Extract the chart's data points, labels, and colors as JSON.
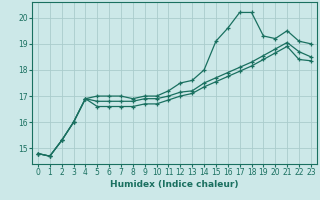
{
  "xlabel": "Humidex (Indice chaleur)",
  "ylabel": "",
  "xlim": [
    -0.5,
    23.5
  ],
  "ylim": [
    14.4,
    20.6
  ],
  "yticks": [
    15,
    16,
    17,
    18,
    19,
    20
  ],
  "xticks": [
    0,
    1,
    2,
    3,
    4,
    5,
    6,
    7,
    8,
    9,
    10,
    11,
    12,
    13,
    14,
    15,
    16,
    17,
    18,
    19,
    20,
    21,
    22,
    23
  ],
  "bg_color": "#cce8e8",
  "grid_color": "#aacccc",
  "line_color": "#1a7060",
  "series": {
    "line1": [
      14.8,
      14.7,
      15.3,
      16.0,
      16.9,
      17.0,
      17.0,
      17.0,
      16.9,
      17.0,
      17.0,
      17.2,
      17.5,
      17.6,
      18.0,
      19.1,
      19.6,
      20.2,
      20.2,
      19.3,
      19.2,
      19.5,
      19.1,
      19.0
    ],
    "line2": [
      14.8,
      14.7,
      15.3,
      16.0,
      16.9,
      16.8,
      16.8,
      16.8,
      16.8,
      16.9,
      16.9,
      17.0,
      17.15,
      17.2,
      17.5,
      17.7,
      17.9,
      18.1,
      18.3,
      18.55,
      18.8,
      19.05,
      18.7,
      18.5
    ],
    "line3": [
      14.8,
      14.7,
      15.3,
      16.0,
      16.9,
      16.6,
      16.6,
      16.6,
      16.6,
      16.7,
      16.7,
      16.85,
      17.0,
      17.1,
      17.35,
      17.55,
      17.75,
      17.95,
      18.15,
      18.4,
      18.65,
      18.9,
      18.4,
      18.35
    ]
  }
}
